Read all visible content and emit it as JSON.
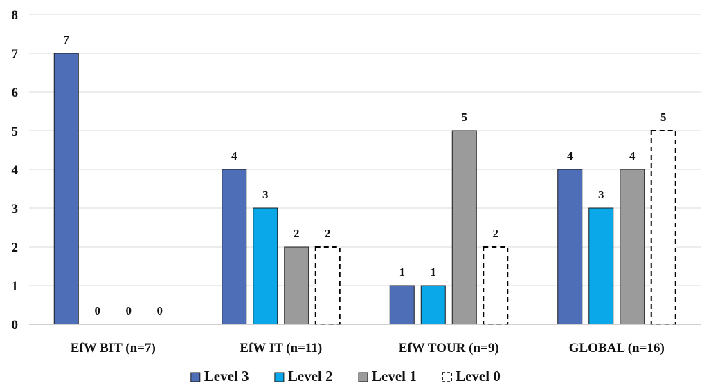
{
  "chart_data": {
    "type": "bar",
    "title": "",
    "xlabel": "",
    "ylabel": "",
    "ylim": [
      0,
      8
    ],
    "yticks": [
      0,
      1,
      2,
      3,
      4,
      5,
      6,
      7,
      8
    ],
    "grid": "horizontal",
    "legend_position": "bottom",
    "categories": [
      "EfW BIT (n=7)",
      "EfW IT (n=11)",
      "EfW TOUR (n=9)",
      "GLOBAL (n=16)"
    ],
    "series": [
      {
        "name": "Level 3",
        "values": [
          7,
          4,
          1,
          4
        ],
        "color": "#4F6EB8",
        "style": "solid"
      },
      {
        "name": "Level 2",
        "values": [
          0,
          3,
          1,
          3
        ],
        "color": "#0AA8E8",
        "style": "solid"
      },
      {
        "name": "Level 1",
        "values": [
          0,
          2,
          5,
          4
        ],
        "color": "#9B9B9B",
        "style": "solid"
      },
      {
        "name": "Level 0",
        "values": [
          0,
          2,
          2,
          5
        ],
        "color": "#FFFFFF",
        "style": "dashed"
      }
    ]
  }
}
